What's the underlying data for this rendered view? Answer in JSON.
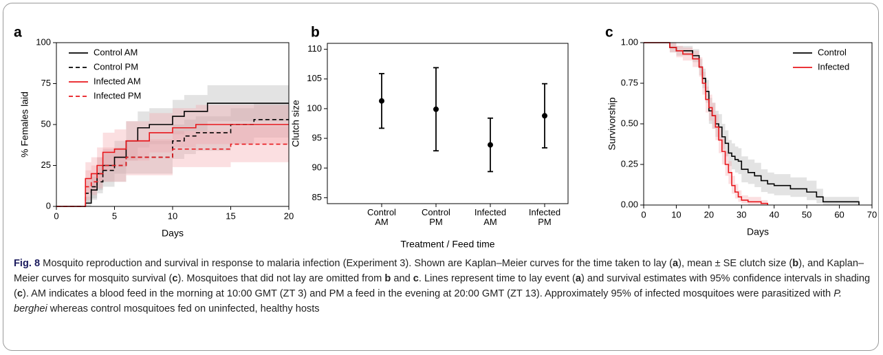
{
  "chart_data": [
    {
      "type": "step",
      "label": "a",
      "xlabel": "Days",
      "ylabel": "% Females laid",
      "xlim": [
        0,
        20
      ],
      "ylim": [
        0,
        100
      ],
      "xticks": [
        0,
        5,
        10,
        15,
        20
      ],
      "yticks": [
        0,
        25,
        50,
        75,
        100
      ],
      "legend": "upper left",
      "x": [
        0,
        2,
        2.5,
        3,
        3.5,
        4,
        5,
        6,
        7,
        8,
        9,
        10,
        11,
        12,
        13,
        15,
        17,
        20
      ],
      "series": [
        {
          "name": "Control AM",
          "color": "#000000",
          "dashed": false,
          "band_color": "#b0b0b0",
          "values": [
            0,
            0,
            2,
            10,
            20,
            25,
            30,
            40,
            48,
            50,
            50,
            55,
            58,
            58,
            63,
            63,
            63,
            63
          ],
          "upper": [
            0,
            0,
            6,
            18,
            30,
            35,
            40,
            52,
            58,
            60,
            60,
            65,
            68,
            68,
            74,
            74,
            74,
            74
          ],
          "lower": [
            0,
            0,
            0,
            4,
            10,
            15,
            20,
            28,
            36,
            38,
            38,
            44,
            46,
            46,
            52,
            52,
            52,
            52
          ]
        },
        {
          "name": "Control PM",
          "color": "#000000",
          "dashed": true,
          "band_color": "#b0b0b0",
          "values": [
            0,
            0,
            8,
            12,
            15,
            22,
            25,
            30,
            30,
            30,
            30,
            40,
            43,
            45,
            45,
            50,
            53,
            53
          ],
          "upper": [
            0,
            0,
            16,
            20,
            24,
            32,
            35,
            40,
            40,
            40,
            40,
            50,
            53,
            55,
            55,
            60,
            63,
            63
          ],
          "lower": [
            0,
            0,
            2,
            5,
            8,
            12,
            15,
            20,
            20,
            20,
            20,
            29,
            32,
            34,
            34,
            38,
            42,
            42
          ]
        },
        {
          "name": "Infected AM",
          "color": "#e8161b",
          "dashed": false,
          "band_color": "#f4a3a8",
          "values": [
            0,
            0,
            17,
            20,
            25,
            33,
            35,
            40,
            40,
            45,
            45,
            48,
            48,
            50,
            50,
            50,
            50,
            50
          ],
          "upper": [
            0,
            0,
            27,
            30,
            36,
            45,
            47,
            52,
            52,
            57,
            57,
            60,
            60,
            62,
            62,
            62,
            62,
            62
          ],
          "lower": [
            0,
            0,
            8,
            11,
            15,
            22,
            24,
            28,
            28,
            33,
            33,
            36,
            36,
            38,
            38,
            38,
            38,
            38
          ]
        },
        {
          "name": "Infected PM",
          "color": "#e8161b",
          "dashed": true,
          "band_color": "#f4a3a8",
          "values": [
            0,
            0,
            12,
            15,
            20,
            25,
            25,
            30,
            30,
            30,
            30,
            35,
            35,
            35,
            35,
            38,
            38,
            38
          ],
          "upper": [
            0,
            0,
            22,
            25,
            30,
            36,
            36,
            41,
            41,
            41,
            41,
            46,
            46,
            46,
            46,
            49,
            49,
            49
          ],
          "lower": [
            0,
            0,
            4,
            7,
            11,
            15,
            15,
            19,
            19,
            19,
            19,
            24,
            24,
            24,
            24,
            27,
            27,
            27
          ]
        }
      ]
    },
    {
      "type": "errorbar",
      "label": "b",
      "xlabel": "Treatment / Feed time",
      "ylabel": "Clutch size",
      "ylim": [
        84,
        111
      ],
      "yticks": [
        85,
        90,
        95,
        100,
        105,
        110
      ],
      "color": "#000000",
      "categories": [
        "Control AM",
        "Control PM",
        "Infected AM",
        "Infected PM"
      ],
      "values": [
        101.3,
        99.9,
        93.9,
        98.8
      ],
      "errors": [
        4.6,
        7.0,
        4.5,
        5.4
      ]
    },
    {
      "type": "step",
      "label": "c",
      "xlabel": "Days",
      "ylabel": "Survivorship",
      "xlim": [
        0,
        70
      ],
      "ylim": [
        0,
        1
      ],
      "xticks": [
        0,
        10,
        20,
        30,
        40,
        50,
        60,
        70
      ],
      "yticks": [
        {
          "value": 0,
          "label": "0.00"
        },
        {
          "value": 0.25,
          "label": "0.25"
        },
        {
          "value": 0.5,
          "label": "0.50"
        },
        {
          "value": 0.75,
          "label": "0.75"
        },
        {
          "value": 1,
          "label": "1.00"
        }
      ],
      "legend": "upper right",
      "x": [
        0,
        5,
        8,
        10,
        12,
        15,
        17,
        18,
        19,
        20,
        21,
        22,
        23,
        24,
        25,
        26,
        27,
        28,
        29,
        30,
        32,
        34,
        36,
        38,
        40,
        45,
        50,
        53,
        55,
        60,
        66
      ],
      "series": [
        {
          "name": "Control",
          "color": "#000000",
          "dashed": false,
          "band_color": "#b0b0b0",
          "values": [
            1,
            1,
            0.97,
            0.95,
            0.95,
            0.92,
            0.85,
            0.78,
            0.7,
            0.58,
            0.55,
            0.5,
            0.48,
            0.42,
            0.38,
            0.32,
            0.3,
            0.28,
            0.27,
            0.22,
            0.2,
            0.18,
            0.15,
            0.13,
            0.12,
            0.1,
            0.08,
            0.05,
            0.02,
            0.02,
            0
          ],
          "upper": [
            1,
            1,
            1,
            0.98,
            0.98,
            0.96,
            0.9,
            0.84,
            0.77,
            0.66,
            0.63,
            0.58,
            0.56,
            0.5,
            0.46,
            0.4,
            0.38,
            0.36,
            0.35,
            0.3,
            0.28,
            0.26,
            0.22,
            0.2,
            0.19,
            0.17,
            0.15,
            0.1,
            0.05,
            0.05,
            0
          ],
          "lower": [
            1,
            1,
            0.94,
            0.92,
            0.92,
            0.88,
            0.8,
            0.72,
            0.63,
            0.5,
            0.47,
            0.42,
            0.4,
            0.34,
            0.3,
            0.24,
            0.22,
            0.2,
            0.19,
            0.14,
            0.13,
            0.11,
            0.08,
            0.07,
            0.06,
            0.05,
            0.03,
            0.01,
            0,
            0,
            0
          ]
        },
        {
          "name": "Infected",
          "color": "#e8161b",
          "dashed": false,
          "band_color": "#f4a3a8",
          "values": [
            1,
            1,
            0.97,
            0.95,
            0.93,
            0.9,
            0.85,
            0.75,
            0.65,
            0.6,
            0.55,
            0.48,
            0.4,
            0.33,
            0.25,
            0.2,
            0.12,
            0.08,
            0.05,
            0.03,
            0.02,
            0.02,
            0.01,
            0,
            null,
            null,
            null,
            null,
            null,
            null,
            null
          ],
          "upper": [
            1,
            1,
            1,
            0.98,
            0.97,
            0.95,
            0.91,
            0.82,
            0.73,
            0.68,
            0.63,
            0.56,
            0.48,
            0.41,
            0.33,
            0.27,
            0.18,
            0.13,
            0.09,
            0.06,
            0.05,
            0.05,
            0.03,
            0,
            null,
            null,
            null,
            null,
            null,
            null,
            null
          ],
          "lower": [
            1,
            1,
            0.94,
            0.91,
            0.89,
            0.85,
            0.79,
            0.68,
            0.57,
            0.52,
            0.47,
            0.4,
            0.32,
            0.25,
            0.18,
            0.13,
            0.07,
            0.04,
            0.02,
            0.01,
            0,
            0,
            0,
            0,
            null,
            null,
            null,
            null,
            null,
            null,
            null
          ]
        }
      ]
    }
  ],
  "caption": {
    "label": "Fig. 8",
    "parts": [
      {
        "text": " Mosquito reproduction and survival in response to malaria infection (Experiment 3). Shown are Kaplan–Meier curves for the time taken to lay ("
      },
      {
        "text": "a",
        "style": "bold"
      },
      {
        "text": "), mean ± SE clutch size ("
      },
      {
        "text": "b",
        "style": "bold"
      },
      {
        "text": "), and Kaplan–Meier curves for mosquito survival ("
      },
      {
        "text": "c",
        "style": "bold"
      },
      {
        "text": "). Mosquitoes that did not lay are omitted from "
      },
      {
        "text": "b",
        "style": "bold"
      },
      {
        "text": " and "
      },
      {
        "text": "c",
        "style": "bold"
      },
      {
        "text": ". Lines represent time to lay event ("
      },
      {
        "text": "a",
        "style": "bold"
      },
      {
        "text": ") and survival estimates with 95% confidence intervals in shading ("
      },
      {
        "text": "c",
        "style": "bold"
      },
      {
        "text": "). AM indicates a blood feed in the morning at 10:00 GMT (ZT 3) and PM a feed in the evening at 20:00 GMT (ZT 13). Approximately 95% of infected mosquitoes were parasitized with "
      },
      {
        "text": "P. berghei",
        "style": "italic"
      },
      {
        "text": " whereas control mosquitoes fed on uninfected, healthy hosts"
      }
    ]
  }
}
